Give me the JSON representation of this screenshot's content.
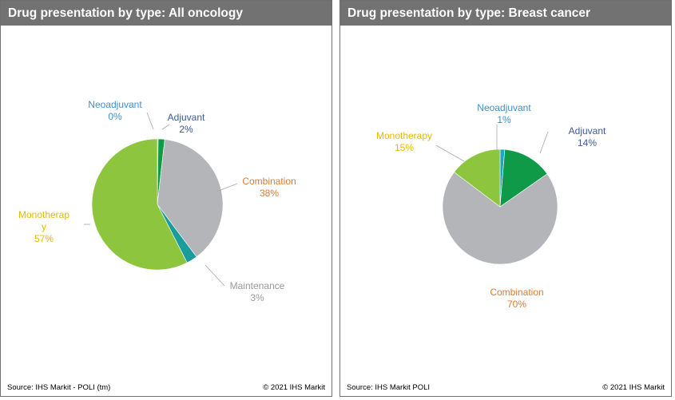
{
  "chart_data": [
    {
      "type": "pie",
      "title": "Drug presentation by type: All oncology",
      "slices": [
        {
          "name": "Neoadjuvant",
          "pct_label": "0%",
          "value": 0.2,
          "color": "#8a8a8a",
          "text_color": "#3f8fd1"
        },
        {
          "name": "Adjuvant",
          "pct_label": "2%",
          "value": 1.6,
          "color": "#0f9a48",
          "text_color": "#3c5a9a"
        },
        {
          "name": "Combination",
          "pct_label": "38%",
          "value": 38,
          "color": "#b4b5b8",
          "text_color": "#e07a2c"
        },
        {
          "name": "Maintenance",
          "pct_label": "3%",
          "value": 2.7,
          "color": "#1a9c9c",
          "text_color": "#9a9a9a"
        },
        {
          "name": "Monotherap y",
          "label_lines": [
            "Monotherap",
            "y"
          ],
          "pct_label": "57%",
          "value": 57.5,
          "color": "#8dc53f",
          "text_color": "#e6b800"
        }
      ],
      "source": "Source:  IHS Markit - POLI (tm)",
      "copyright": "© 2021  IHS Markit"
    },
    {
      "type": "pie",
      "title": "Drug presentation by type: Breast cancer",
      "slices": [
        {
          "name": "Neoadjuvant",
          "pct_label": "1%",
          "value": 1.3,
          "color": "#1aa7c7",
          "text_color": "#3f8fd1"
        },
        {
          "name": "Adjuvant",
          "pct_label": "14%",
          "value": 14,
          "color": "#0f9a48",
          "text_color": "#3c5a9a"
        },
        {
          "name": "Combination",
          "pct_label": "70%",
          "value": 70,
          "color": "#b4b5b8",
          "text_color": "#e07a2c"
        },
        {
          "name": "Monotherapy",
          "pct_label": "15%",
          "value": 14.7,
          "color": "#8dc53f",
          "text_color": "#e6b800"
        }
      ],
      "source": "Source:  IHS Markit POLI",
      "copyright": "© 2021  IHS Markit"
    }
  ]
}
